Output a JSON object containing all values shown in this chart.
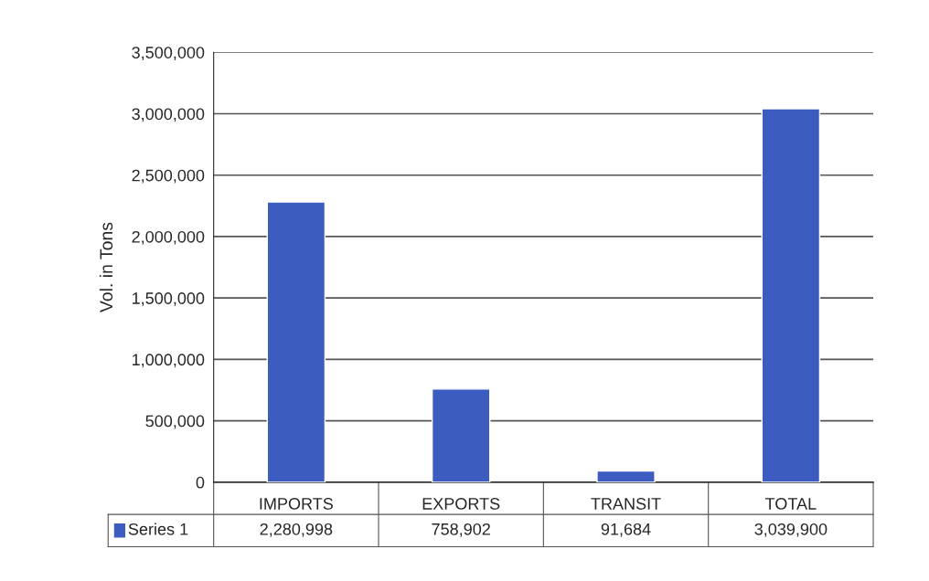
{
  "chart_data": {
    "type": "bar",
    "ylabel": "Vol. in Tons",
    "categories": [
      "IMPORTS",
      "EXPORTS",
      "TRANSIT",
      "TOTAL"
    ],
    "series": [
      {
        "name": "Series 1",
        "color": "#3d5cc0",
        "values": [
          2280998,
          758902,
          91684,
          3039900
        ],
        "value_labels": [
          "2,280,998",
          "758,902",
          "91,684",
          "3,039,900"
        ]
      }
    ],
    "ylim": [
      0,
      3500000
    ],
    "yticks": [
      {
        "value": 0,
        "label": "0"
      },
      {
        "value": 500000,
        "label": "500,000"
      },
      {
        "value": 1000000,
        "label": "1,000,000"
      },
      {
        "value": 1500000,
        "label": "1,500,000"
      },
      {
        "value": 2000000,
        "label": "2,000,000"
      },
      {
        "value": 2500000,
        "label": "2,500,000"
      },
      {
        "value": 3000000,
        "label": "3,000,000"
      },
      {
        "value": 3500000,
        "label": "3,500,000"
      }
    ],
    "grid": "y",
    "legend": "bottom left"
  }
}
